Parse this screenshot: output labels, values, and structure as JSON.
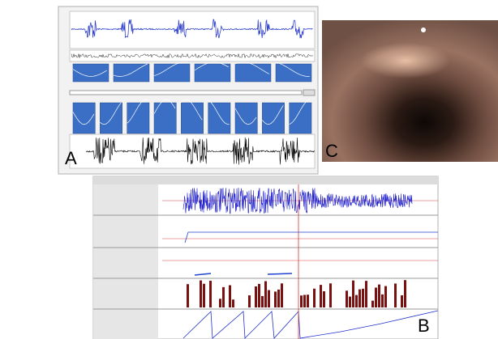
{
  "panels": {
    "a": {
      "label": "A"
    },
    "b": {
      "label": "B"
    },
    "c": {
      "label": "C"
    }
  }
}
